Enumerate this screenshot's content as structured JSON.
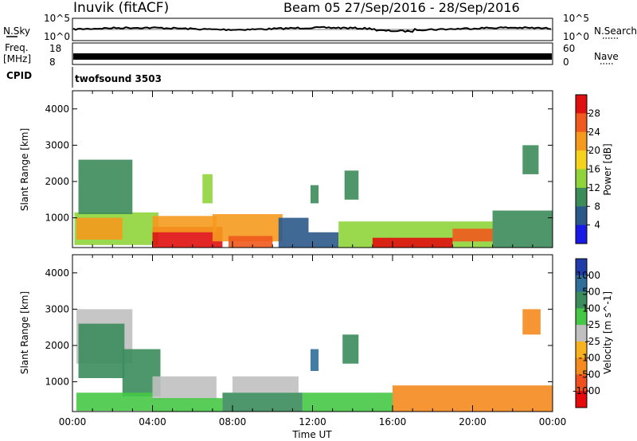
{
  "header": {
    "station": "Inuvik (fitACF)",
    "beam_date": "Beam 05  27/Sep/2016 - 28/Sep/2016"
  },
  "noise_panel": {
    "left_label": "N.Sky",
    "right_label": "N.Search",
    "left_ticks": [
      "10^5",
      "10^0"
    ],
    "right_ticks": [
      "10^5",
      "10^0"
    ]
  },
  "freq_panel": {
    "left_label_top": "Freq.",
    "left_label_unit": "[MHz]",
    "right_label": "Nave",
    "left_ticks": [
      "18",
      "8"
    ],
    "right_ticks": [
      "60",
      "0"
    ]
  },
  "cpid_panel": {
    "label": "CPID",
    "program": "twofsound 3503"
  },
  "chart_data": [
    {
      "type": "heatmap",
      "name": "power",
      "ylabel": "Slant Range [km]",
      "yticks": [
        1000,
        2000,
        3000,
        4000
      ],
      "ylim": [
        180,
        4500
      ],
      "xlim": [
        0,
        24
      ],
      "colorbar_label": "Power [dB]",
      "colorbar_ticks": [
        "28",
        "24",
        "20",
        "16",
        "12",
        "8",
        "4"
      ],
      "colorbar_colors": [
        "#e01010",
        "#f05a1e",
        "#f59a1e",
        "#f5d21e",
        "#8fd43a",
        "#3c8c5a",
        "#2b5a8a",
        "#1a1ae6"
      ],
      "cells": [
        {
          "t0": 0.1,
          "t1": 4.3,
          "r0": 250,
          "r1": 1150,
          "value": 12
        },
        {
          "t0": 0.3,
          "t1": 3.0,
          "r0": 1100,
          "r1": 2600,
          "value": 10
        },
        {
          "t0": 0.2,
          "t1": 2.5,
          "r0": 400,
          "r1": 1000,
          "value": 22
        },
        {
          "t0": 4.0,
          "t1": 7.5,
          "r0": 180,
          "r1": 750,
          "value": 28
        },
        {
          "t0": 4.0,
          "t1": 7.2,
          "r0": 600,
          "r1": 1050,
          "value": 20
        },
        {
          "t0": 7.0,
          "t1": 10.5,
          "r0": 350,
          "r1": 1100,
          "value": 20
        },
        {
          "t0": 7.8,
          "t1": 10.0,
          "r0": 180,
          "r1": 500,
          "value": 26
        },
        {
          "t0": 10.3,
          "t1": 11.8,
          "r0": 180,
          "r1": 1000,
          "value": 6
        },
        {
          "t0": 11.8,
          "t1": 13.3,
          "r0": 180,
          "r1": 600,
          "value": 4
        },
        {
          "t0": 13.3,
          "t1": 21.0,
          "r0": 180,
          "r1": 900,
          "value": 14
        },
        {
          "t0": 15.0,
          "t1": 19.0,
          "r0": 180,
          "r1": 450,
          "value": 28
        },
        {
          "t0": 19.0,
          "t1": 21.0,
          "r0": 350,
          "r1": 700,
          "value": 24
        },
        {
          "t0": 21.0,
          "t1": 24.0,
          "r0": 180,
          "r1": 1200,
          "value": 10
        },
        {
          "t0": 6.5,
          "t1": 7.0,
          "r0": 1400,
          "r1": 2200,
          "value": 12
        },
        {
          "t0": 11.9,
          "t1": 12.3,
          "r0": 1400,
          "r1": 1900,
          "value": 8
        },
        {
          "t0": 13.6,
          "t1": 14.3,
          "r0": 1500,
          "r1": 2300,
          "value": 10
        },
        {
          "t0": 22.5,
          "t1": 23.3,
          "r0": 2200,
          "r1": 3000,
          "value": 10
        }
      ]
    },
    {
      "type": "heatmap",
      "name": "velocity",
      "ylabel": "Slant Range [km]",
      "xlabel": "Time UT",
      "yticks": [
        1000,
        2000,
        3000,
        4000
      ],
      "xticks": [
        "00:00",
        "04:00",
        "08:00",
        "12:00",
        "16:00",
        "20:00",
        "00:00"
      ],
      "ylim": [
        180,
        4500
      ],
      "xlim": [
        0,
        24
      ],
      "colorbar_label": "Velocity [m s^-1]",
      "colorbar_ticks": [
        "1000",
        "500",
        "100",
        "25",
        "-25",
        "-100",
        "-500",
        "-1000"
      ],
      "colorbar_colors": [
        "#1f3ca8",
        "#2f6f9a",
        "#3b8c5c",
        "#46c846",
        "#c0c0c0",
        "#f7b21e",
        "#f58a1e",
        "#f0501e",
        "#e60a0a"
      ],
      "cells": [
        {
          "t0": 0.2,
          "t1": 3.0,
          "r0": 1500,
          "r1": 3000,
          "value": -10
        },
        {
          "t0": 0.3,
          "t1": 2.6,
          "r0": 1100,
          "r1": 2600,
          "value": 150
        },
        {
          "t0": 2.5,
          "t1": 4.4,
          "r0": 600,
          "r1": 1900,
          "value": 150
        },
        {
          "t0": 0.2,
          "t1": 4.0,
          "r0": 200,
          "r1": 700,
          "value": 80
        },
        {
          "t0": 4.0,
          "t1": 7.2,
          "r0": 500,
          "r1": 1150,
          "value": 0
        },
        {
          "t0": 4.0,
          "t1": 7.5,
          "r0": 180,
          "r1": 550,
          "value": 60
        },
        {
          "t0": 8.0,
          "t1": 11.3,
          "r0": 700,
          "r1": 1150,
          "value": 0
        },
        {
          "t0": 7.5,
          "t1": 11.5,
          "r0": 180,
          "r1": 700,
          "value": 150
        },
        {
          "t0": 11.9,
          "t1": 12.3,
          "r0": 1300,
          "r1": 1900,
          "value": 600
        },
        {
          "t0": 13.5,
          "t1": 14.3,
          "r0": 1500,
          "r1": 2300,
          "value": 150
        },
        {
          "t0": 11.5,
          "t1": 16.0,
          "r0": 180,
          "r1": 700,
          "value": 60
        },
        {
          "t0": 16.0,
          "t1": 24.0,
          "r0": 180,
          "r1": 900,
          "value": -150
        },
        {
          "t0": 22.5,
          "t1": 23.4,
          "r0": 2300,
          "r1": 3000,
          "value": -150
        }
      ]
    }
  ],
  "colors": {
    "frame": "#000000",
    "background": "#ffffff"
  }
}
